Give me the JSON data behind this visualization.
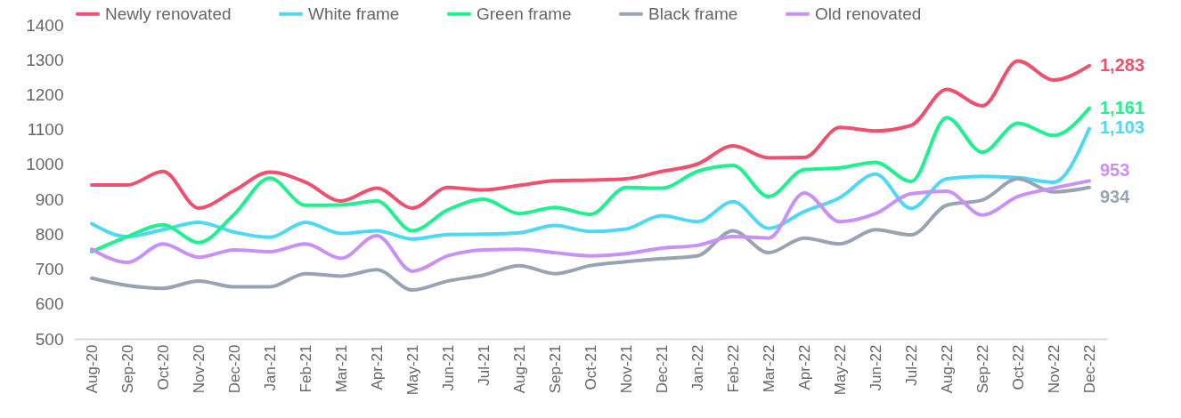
{
  "chart_data": {
    "type": "line",
    "categories": [
      "Aug-20",
      "Sep-20",
      "Oct-20",
      "Nov-20",
      "Dec-20",
      "Jan-21",
      "Feb-21",
      "Mar-21",
      "Apr-21",
      "May-21",
      "Jun-21",
      "Jul-21",
      "Aug-21",
      "Sep-21",
      "Oct-21",
      "Nov-21",
      "Dec-21",
      "Jan-22",
      "Feb-22",
      "Mar-22",
      "Apr-22",
      "May-22",
      "Jun-22",
      "Jul-22",
      "Aug-22",
      "Sep-22",
      "Oct-22",
      "Nov-22",
      "Dec-22"
    ],
    "ylim": [
      500,
      1400
    ],
    "yticks": [
      500,
      600,
      700,
      800,
      900,
      1000,
      1100,
      1200,
      1300,
      1400
    ],
    "grid": false,
    "legend": "top",
    "marker": "none",
    "line_style": "solid",
    "series": [
      {
        "name": "Newly renovated",
        "color": "#f0506e",
        "values": [
          941,
          941,
          980,
          875,
          925,
          978,
          949,
          895,
          932,
          875,
          934,
          927,
          940,
          953,
          955,
          959,
          980,
          1001,
          1053,
          1019,
          1020,
          1106,
          1096,
          1112,
          1215,
          1168,
          1297,
          1242,
          1283
        ],
        "value_labels": [
          null,
          null,
          null,
          null,
          null,
          null,
          null,
          null,
          null,
          null,
          null,
          null,
          null,
          null,
          null,
          null,
          null,
          null,
          null,
          null,
          null,
          null,
          null,
          null,
          null,
          null,
          null,
          null,
          "1,283"
        ]
      },
      {
        "name": "White frame",
        "color": "#4dd9f5",
        "values": [
          830,
          793,
          813,
          834,
          806,
          791,
          834,
          802,
          810,
          786,
          799,
          800,
          804,
          825,
          808,
          815,
          853,
          836,
          893,
          817,
          865,
          905,
          972,
          874,
          959,
          966,
          962,
          949,
          1103
        ],
        "value_labels": [
          null,
          null,
          null,
          null,
          null,
          null,
          null,
          null,
          null,
          null,
          null,
          null,
          null,
          null,
          null,
          null,
          null,
          null,
          null,
          null,
          null,
          null,
          null,
          null,
          null,
          null,
          null,
          null,
          "1,103"
        ]
      },
      {
        "name": "Green frame",
        "color": "#1ef28e",
        "values": [
          750,
          793,
          827,
          776,
          857,
          961,
          883,
          884,
          895,
          810,
          870,
          900,
          859,
          877,
          857,
          934,
          932,
          980,
          997,
          908,
          985,
          990,
          1006,
          951,
          1134,
          1035,
          1118,
          1083,
          1161
        ],
        "value_labels": [
          null,
          null,
          null,
          null,
          null,
          null,
          null,
          null,
          null,
          null,
          null,
          null,
          null,
          null,
          null,
          null,
          null,
          null,
          null,
          null,
          null,
          null,
          null,
          null,
          null,
          null,
          null,
          null,
          "1,161"
        ]
      },
      {
        "name": "Black frame",
        "color": "#98a4b4",
        "values": [
          674,
          653,
          645,
          666,
          649,
          649,
          687,
          680,
          698,
          640,
          666,
          683,
          710,
          687,
          710,
          721,
          730,
          738,
          810,
          747,
          789,
          772,
          813,
          798,
          883,
          898,
          959,
          921,
          934
        ],
        "value_labels": [
          null,
          null,
          null,
          null,
          null,
          null,
          null,
          null,
          null,
          null,
          null,
          null,
          null,
          null,
          null,
          null,
          null,
          null,
          null,
          null,
          null,
          null,
          null,
          null,
          null,
          null,
          null,
          null,
          "934"
        ]
      },
      {
        "name": "Old renovated",
        "color": "#c990f7",
        "values": [
          757,
          719,
          772,
          734,
          755,
          750,
          772,
          731,
          796,
          694,
          738,
          755,
          757,
          747,
          738,
          744,
          760,
          768,
          793,
          789,
          918,
          836,
          859,
          916,
          923,
          855,
          908,
          932,
          953
        ],
        "value_labels": [
          null,
          null,
          null,
          null,
          null,
          null,
          null,
          null,
          null,
          null,
          null,
          null,
          null,
          null,
          null,
          null,
          null,
          null,
          null,
          null,
          null,
          null,
          null,
          null,
          null,
          null,
          null,
          null,
          "953"
        ]
      }
    ]
  }
}
